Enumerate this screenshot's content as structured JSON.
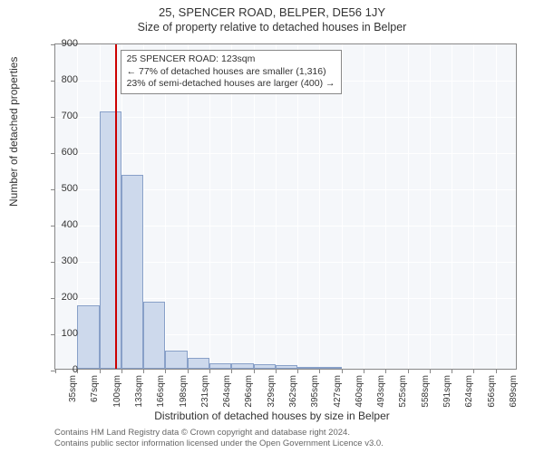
{
  "title": "25, SPENCER ROAD, BELPER, DE56 1JY",
  "subtitle": "Size of property relative to detached houses in Belper",
  "y_axis_label": "Number of detached properties",
  "x_axis_label": "Distribution of detached houses by size in Belper",
  "chart": {
    "type": "histogram",
    "background_color": "#f5f7fa",
    "grid_color": "#ffffff",
    "border_color": "#888888",
    "bar_fill": "#cdd9ec",
    "bar_border": "#88a0c8",
    "marker_color": "#cc0000",
    "ylim": [
      0,
      900
    ],
    "ytick_step": 100,
    "x_categories": [
      "35sqm",
      "67sqm",
      "100sqm",
      "133sqm",
      "166sqm",
      "198sqm",
      "231sqm",
      "264sqm",
      "296sqm",
      "329sqm",
      "362sqm",
      "395sqm",
      "427sqm",
      "460sqm",
      "493sqm",
      "525sqm",
      "558sqm",
      "591sqm",
      "624sqm",
      "656sqm",
      "689sqm"
    ],
    "values": [
      0,
      175,
      710,
      535,
      185,
      50,
      30,
      15,
      15,
      12,
      10,
      5,
      3,
      0,
      0,
      0,
      0,
      0,
      0,
      0,
      0
    ],
    "marker_index": 2.7,
    "annotation": {
      "line1": "25 SPENCER ROAD: 123sqm",
      "line2": "← 77% of detached houses are smaller (1,316)",
      "line3": "23% of semi-detached houses are larger (400) →"
    }
  },
  "footer": {
    "line1": "Contains HM Land Registry data © Crown copyright and database right 2024.",
    "line2": "Contains public sector information licensed under the Open Government Licence v3.0."
  }
}
